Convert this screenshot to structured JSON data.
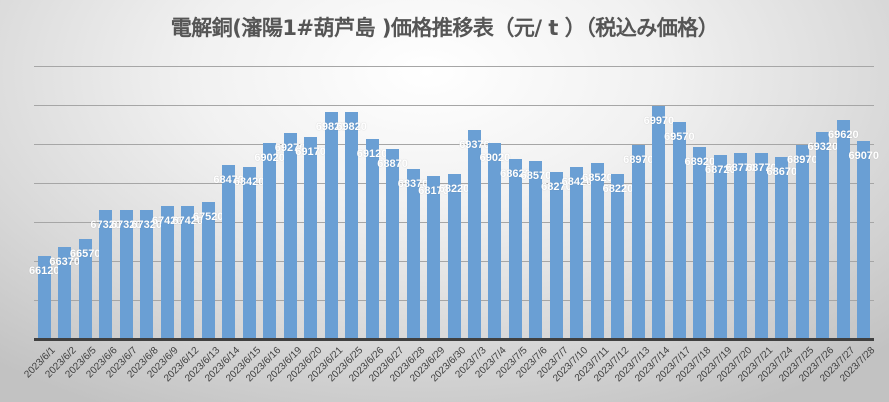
{
  "chart_data": {
    "type": "bar",
    "title": "電解銅(瀋陽1#葫芦島 )価格推移表（元/ t ）（税込み価格）",
    "xlabel": "",
    "ylabel": "",
    "ylim": [
      64000,
      71000
    ],
    "grid": true,
    "legend": "none",
    "bar_color": "#6a9fd4",
    "label_color": "#ffffff",
    "categories": [
      "2023/6/1",
      "2023/6/2",
      "2023/6/5",
      "2023/6/6",
      "2023/6/7",
      "2023/6/8",
      "2023/6/9",
      "2023/6/12",
      "2023/6/13",
      "2023/6/14",
      "2023/6/15",
      "2023/6/16",
      "2023/6/19",
      "2023/6/20",
      "2023/6/21",
      "2023/6/25",
      "2023/6/26",
      "2023/6/27",
      "2023/6/28",
      "2023/6/29",
      "2023/6/30",
      "2023/7/3",
      "2023/7/4",
      "2023/7/5",
      "2023/7/6",
      "2023/7/7",
      "2023/7/10",
      "2023/7/11",
      "2023/7/12",
      "2023/7/13",
      "2023/7/14",
      "2023/7/17",
      "2023/7/18",
      "2023/7/19",
      "2023/7/20",
      "2023/7/21",
      "2023/7/24",
      "2023/7/25",
      "2023/7/26",
      "2023/7/27",
      "2023/7/28"
    ],
    "values": [
      66120,
      66370,
      66570,
      67320,
      67320,
      67320,
      67420,
      67420,
      67520,
      68470,
      68420,
      69020,
      69270,
      69170,
      69820,
      69820,
      69120,
      68870,
      68370,
      68170,
      68220,
      69370,
      69020,
      68620,
      68570,
      68270,
      68420,
      68520,
      68220,
      68970,
      69970,
      69570,
      68920,
      68720,
      68770,
      68770,
      68670,
      68970,
      69320,
      69620,
      69070
    ]
  }
}
